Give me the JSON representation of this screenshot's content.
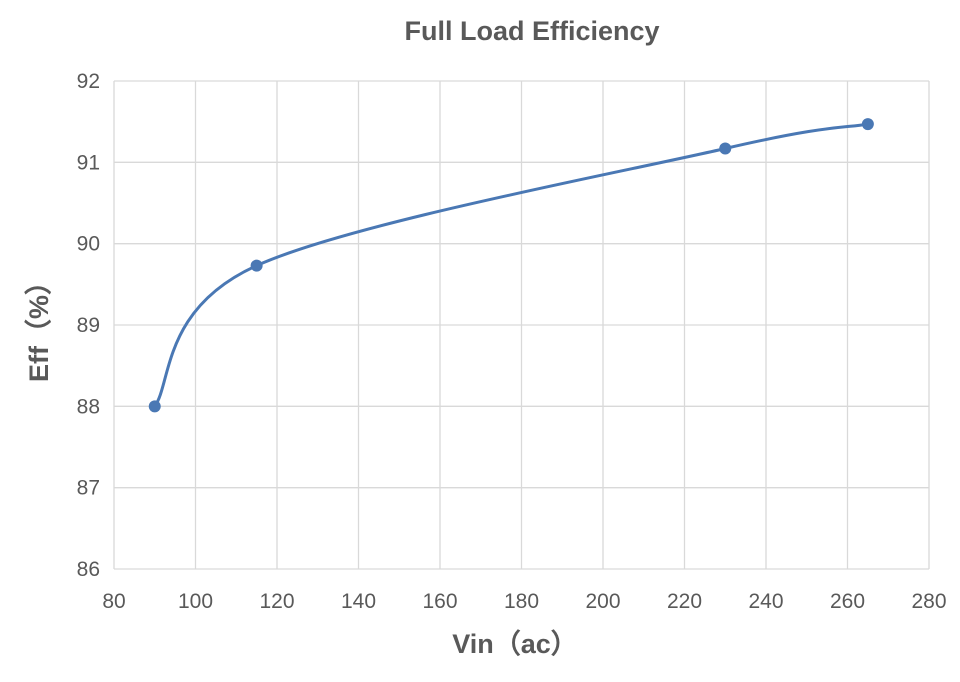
{
  "chart_data": {
    "type": "scatter",
    "title": "Full Load Efficiency",
    "xlabel": "Vin（ac）",
    "ylabel": "Eff（%）",
    "xlim": [
      80,
      280
    ],
    "ylim": [
      86,
      92
    ],
    "xticks": [
      80,
      100,
      120,
      140,
      160,
      180,
      200,
      220,
      240,
      260,
      280
    ],
    "yticks": [
      86,
      87,
      88,
      89,
      90,
      91,
      92
    ],
    "grid": true,
    "smooth": true,
    "series": [
      {
        "x": [
          90,
          115,
          230,
          265
        ],
        "y": [
          88.0,
          89.73,
          91.17,
          91.47
        ]
      }
    ],
    "colors": {
      "series": "#4a78b4",
      "grid": "#d9d9d9",
      "text": "#595959"
    }
  }
}
